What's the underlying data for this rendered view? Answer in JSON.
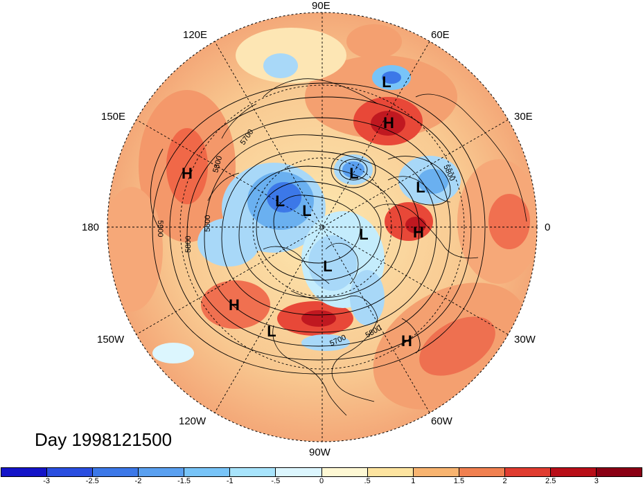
{
  "title": "Day 1998121500",
  "lon_labels": [
    "90E",
    "60E",
    "30E",
    "0",
    "30W",
    "60W",
    "90W",
    "120W",
    "150W",
    "180",
    "150E",
    "120E"
  ],
  "center_labels": [
    {
      "label": "L",
      "kind": "low"
    },
    {
      "label": "H",
      "kind": "high"
    },
    {
      "label": "L",
      "kind": "low"
    },
    {
      "label": "L",
      "kind": "low"
    },
    {
      "label": "H",
      "kind": "high"
    },
    {
      "label": "L",
      "kind": "low"
    },
    {
      "label": "L",
      "kind": "low"
    },
    {
      "label": "L",
      "kind": "low"
    },
    {
      "label": "L",
      "kind": "low"
    },
    {
      "label": "H",
      "kind": "high"
    },
    {
      "label": "H",
      "kind": "high"
    },
    {
      "label": "L",
      "kind": "low"
    },
    {
      "label": "H",
      "kind": "high"
    }
  ],
  "contour_labels": [
    "5700",
    "5800",
    "5600",
    "5800",
    "5900",
    "5800",
    "5700",
    "5800"
  ],
  "colorbar": {
    "ticks": [
      "-3",
      "-2.5",
      "-2",
      "-1.5",
      "-1",
      "-.5",
      "0",
      ".5",
      "1",
      "1.5",
      "2",
      "2.5",
      "3"
    ],
    "colors": [
      "#1414c8",
      "#2a4ee0",
      "#3c78e8",
      "#5aa0f0",
      "#78c4f8",
      "#a8e4fc",
      "#dcf6fe",
      "#fef8d4",
      "#fde4a0",
      "#f8b470",
      "#f08050",
      "#e03c30",
      "#b80e18",
      "#8a0014"
    ]
  }
}
